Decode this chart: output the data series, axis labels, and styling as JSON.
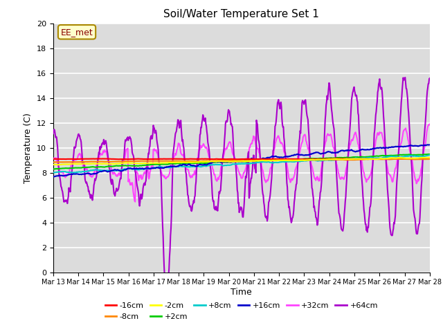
{
  "title": "Soil/Water Temperature Set 1",
  "xlabel": "Time",
  "ylabel": "Temperature (C)",
  "ylim": [
    0,
    20
  ],
  "xlim": [
    0,
    15
  ],
  "background_color": "#dcdcdc",
  "annotation_text": "EE_met",
  "annotation_bg": "#ffffcc",
  "annotation_border": "#aa8800",
  "series": {
    "-16cm": {
      "color": "#ff0000",
      "lw": 1.5
    },
    "-8cm": {
      "color": "#ff8800",
      "lw": 1.5
    },
    "-2cm": {
      "color": "#ffff00",
      "lw": 1.5
    },
    "+2cm": {
      "color": "#00cc00",
      "lw": 1.5
    },
    "+8cm": {
      "color": "#00cccc",
      "lw": 1.5
    },
    "+16cm": {
      "color": "#0000cc",
      "lw": 1.5
    },
    "+32cm": {
      "color": "#ff44ff",
      "lw": 1.5
    },
    "+64cm": {
      "color": "#aa00cc",
      "lw": 1.5
    }
  },
  "xtick_labels": [
    "Mar 13",
    "Mar 14",
    "Mar 15",
    "Mar 16",
    "Mar 17",
    "Mar 18",
    "Mar 19",
    "Mar 20",
    "Mar 21",
    "Mar 22",
    "Mar 23",
    "Mar 24",
    "Mar 25",
    "Mar 26",
    "Mar 27",
    "Mar 28"
  ],
  "ytick_labels": [
    "0",
    "2",
    "4",
    "6",
    "8",
    "10",
    "12",
    "14",
    "16",
    "18",
    "20"
  ]
}
